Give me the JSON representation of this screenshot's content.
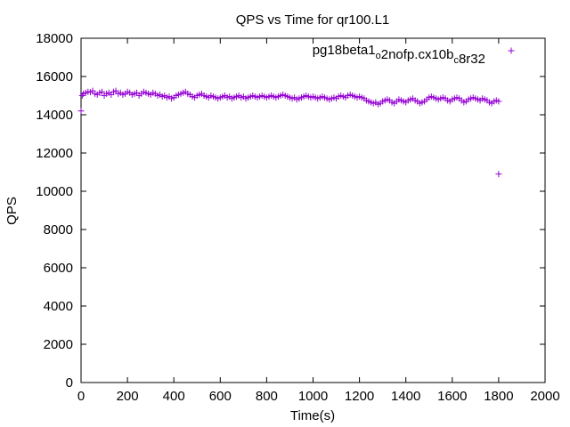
{
  "chart_data": {
    "type": "scatter",
    "title": "QPS vs Time for qr100.L1",
    "xlabel": "Time(s)",
    "ylabel": "QPS",
    "xlim": [
      0,
      2000
    ],
    "ylim": [
      0,
      18000
    ],
    "xticks": [
      0,
      200,
      400,
      600,
      800,
      1000,
      1200,
      1400,
      1600,
      1800,
      2000
    ],
    "yticks": [
      0,
      2000,
      4000,
      6000,
      8000,
      10000,
      12000,
      14000,
      16000,
      18000
    ],
    "grid": false,
    "legend_position": "top-right",
    "marker": "plus",
    "series": [
      {
        "name": "pg18beta1_o2nofp.cx10b_c8r32",
        "name_parts": [
          {
            "text": "pg18beta1",
            "sub": false
          },
          {
            "text": "o",
            "sub": true
          },
          {
            "text": "2nofp.cx10b",
            "sub": false
          },
          {
            "text": "c",
            "sub": true
          },
          {
            "text": "8r32",
            "sub": false
          }
        ],
        "color": "#9400d3",
        "points": [
          [
            0,
            14200
          ],
          [
            5,
            15000
          ],
          [
            10,
            15100
          ],
          [
            20,
            15150
          ],
          [
            30,
            15200
          ],
          [
            40,
            15180
          ],
          [
            50,
            15250
          ],
          [
            60,
            15100
          ],
          [
            70,
            15050
          ],
          [
            80,
            15150
          ],
          [
            90,
            15200
          ],
          [
            100,
            15000
          ],
          [
            110,
            15100
          ],
          [
            120,
            15150
          ],
          [
            130,
            15050
          ],
          [
            140,
            15200
          ],
          [
            150,
            15250
          ],
          [
            160,
            15100
          ],
          [
            170,
            15150
          ],
          [
            180,
            15050
          ],
          [
            190,
            15100
          ],
          [
            200,
            15200
          ],
          [
            210,
            15150
          ],
          [
            220,
            15050
          ],
          [
            230,
            15100
          ],
          [
            240,
            15150
          ],
          [
            250,
            15000
          ],
          [
            260,
            15100
          ],
          [
            270,
            15200
          ],
          [
            280,
            15150
          ],
          [
            290,
            15100
          ],
          [
            300,
            15050
          ],
          [
            310,
            15150
          ],
          [
            320,
            15100
          ],
          [
            330,
            15000
          ],
          [
            340,
            15050
          ],
          [
            350,
            14950
          ],
          [
            360,
            15000
          ],
          [
            370,
            14900
          ],
          [
            380,
            14950
          ],
          [
            390,
            14850
          ],
          [
            400,
            14900
          ],
          [
            410,
            15000
          ],
          [
            420,
            15050
          ],
          [
            430,
            15100
          ],
          [
            440,
            15150
          ],
          [
            450,
            15200
          ],
          [
            460,
            15100
          ],
          [
            470,
            15050
          ],
          [
            480,
            14950
          ],
          [
            490,
            14900
          ],
          [
            500,
            15000
          ],
          [
            510,
            15050
          ],
          [
            520,
            15100
          ],
          [
            530,
            15000
          ],
          [
            540,
            14950
          ],
          [
            550,
            14900
          ],
          [
            560,
            15000
          ],
          [
            570,
            14950
          ],
          [
            580,
            14900
          ],
          [
            590,
            14850
          ],
          [
            600,
            14900
          ],
          [
            610,
            14950
          ],
          [
            620,
            15000
          ],
          [
            630,
            14900
          ],
          [
            640,
            14950
          ],
          [
            650,
            14850
          ],
          [
            660,
            14900
          ],
          [
            670,
            14950
          ],
          [
            680,
            15000
          ],
          [
            690,
            14900
          ],
          [
            700,
            14950
          ],
          [
            710,
            14850
          ],
          [
            720,
            14900
          ],
          [
            730,
            14950
          ],
          [
            740,
            15000
          ],
          [
            750,
            14950
          ],
          [
            760,
            14900
          ],
          [
            770,
            14950
          ],
          [
            780,
            15000
          ],
          [
            790,
            14950
          ],
          [
            800,
            14900
          ],
          [
            810,
            14950
          ],
          [
            820,
            15000
          ],
          [
            830,
            14950
          ],
          [
            840,
            14900
          ],
          [
            850,
            14950
          ],
          [
            860,
            15000
          ],
          [
            870,
            15050
          ],
          [
            880,
            15000
          ],
          [
            890,
            14950
          ],
          [
            900,
            14900
          ],
          [
            910,
            14850
          ],
          [
            920,
            14900
          ],
          [
            930,
            14800
          ],
          [
            940,
            14850
          ],
          [
            950,
            14900
          ],
          [
            960,
            14950
          ],
          [
            970,
            15000
          ],
          [
            980,
            14950
          ],
          [
            990,
            14900
          ],
          [
            1000,
            14950
          ],
          [
            1010,
            14900
          ],
          [
            1020,
            14850
          ],
          [
            1030,
            14900
          ],
          [
            1040,
            14950
          ],
          [
            1050,
            14900
          ],
          [
            1060,
            14850
          ],
          [
            1070,
            14800
          ],
          [
            1080,
            14850
          ],
          [
            1090,
            14900
          ],
          [
            1100,
            14850
          ],
          [
            1110,
            14950
          ],
          [
            1120,
            15000
          ],
          [
            1130,
            14950
          ],
          [
            1140,
            14900
          ],
          [
            1150,
            15000
          ],
          [
            1160,
            15050
          ],
          [
            1170,
            15000
          ],
          [
            1180,
            14950
          ],
          [
            1190,
            14900
          ],
          [
            1200,
            14950
          ],
          [
            1210,
            14900
          ],
          [
            1220,
            14850
          ],
          [
            1230,
            14750
          ],
          [
            1240,
            14700
          ],
          [
            1250,
            14650
          ],
          [
            1260,
            14600
          ],
          [
            1270,
            14650
          ],
          [
            1280,
            14550
          ],
          [
            1290,
            14600
          ],
          [
            1300,
            14700
          ],
          [
            1310,
            14750
          ],
          [
            1320,
            14800
          ],
          [
            1330,
            14750
          ],
          [
            1340,
            14650
          ],
          [
            1350,
            14600
          ],
          [
            1360,
            14700
          ],
          [
            1370,
            14800
          ],
          [
            1380,
            14750
          ],
          [
            1390,
            14700
          ],
          [
            1400,
            14650
          ],
          [
            1410,
            14750
          ],
          [
            1420,
            14800
          ],
          [
            1430,
            14850
          ],
          [
            1440,
            14750
          ],
          [
            1450,
            14700
          ],
          [
            1460,
            14600
          ],
          [
            1470,
            14650
          ],
          [
            1480,
            14700
          ],
          [
            1490,
            14800
          ],
          [
            1500,
            14900
          ],
          [
            1510,
            14950
          ],
          [
            1520,
            14900
          ],
          [
            1530,
            14850
          ],
          [
            1540,
            14800
          ],
          [
            1550,
            14850
          ],
          [
            1560,
            14900
          ],
          [
            1570,
            14850
          ],
          [
            1580,
            14750
          ],
          [
            1590,
            14700
          ],
          [
            1600,
            14800
          ],
          [
            1610,
            14850
          ],
          [
            1620,
            14900
          ],
          [
            1630,
            14850
          ],
          [
            1640,
            14750
          ],
          [
            1650,
            14650
          ],
          [
            1660,
            14700
          ],
          [
            1670,
            14800
          ],
          [
            1680,
            14850
          ],
          [
            1690,
            14900
          ],
          [
            1700,
            14850
          ],
          [
            1710,
            14800
          ],
          [
            1720,
            14750
          ],
          [
            1730,
            14850
          ],
          [
            1740,
            14800
          ],
          [
            1750,
            14750
          ],
          [
            1760,
            14650
          ],
          [
            1770,
            14600
          ],
          [
            1780,
            14700
          ],
          [
            1790,
            14750
          ],
          [
            1800,
            14700
          ],
          [
            1800,
            10900
          ]
        ]
      }
    ]
  }
}
